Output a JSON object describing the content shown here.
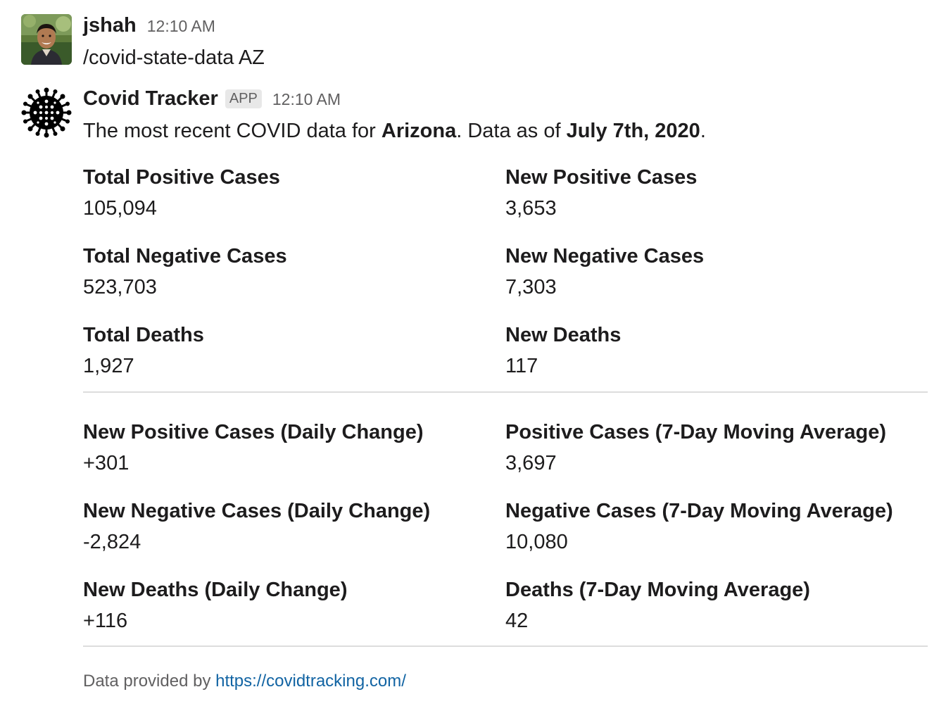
{
  "user_message": {
    "sender": "jshah",
    "time": "12:10 AM",
    "text": "/covid-state-data AZ"
  },
  "bot_message": {
    "sender": "Covid Tracker",
    "badge": "APP",
    "time": "12:10 AM",
    "intro_prefix": "The most recent COVID data for ",
    "state": "Arizona",
    "intro_middle": ". Data as of ",
    "date": "July 7th, 2020",
    "intro_suffix": "."
  },
  "section1": [
    {
      "label": "Total Positive Cases",
      "value": "105,094"
    },
    {
      "label": "New Positive Cases",
      "value": "3,653"
    },
    {
      "label": "Total Negative Cases",
      "value": "523,703"
    },
    {
      "label": "New Negative Cases",
      "value": "7,303"
    },
    {
      "label": "Total Deaths",
      "value": "1,927"
    },
    {
      "label": "New Deaths",
      "value": "117"
    }
  ],
  "section2": [
    {
      "label": "New Positive Cases (Daily Change)",
      "value": "+301"
    },
    {
      "label": "Positive Cases (7-Day Moving Average)",
      "value": "3,697"
    },
    {
      "label": "New Negative Cases (Daily Change)",
      "value": "-2,824"
    },
    {
      "label": "Negative Cases (7-Day Moving Average)",
      "value": "10,080"
    },
    {
      "label": "New Deaths (Daily Change)",
      "value": "+116"
    },
    {
      "label": "Deaths (7-Day Moving Average)",
      "value": "42"
    }
  ],
  "footer": {
    "prefix": "Data provided by ",
    "link": "https://covidtracking.com/"
  },
  "icons": {
    "user_avatar": "user-photo-avatar",
    "bot_avatar": "virus-icon"
  }
}
